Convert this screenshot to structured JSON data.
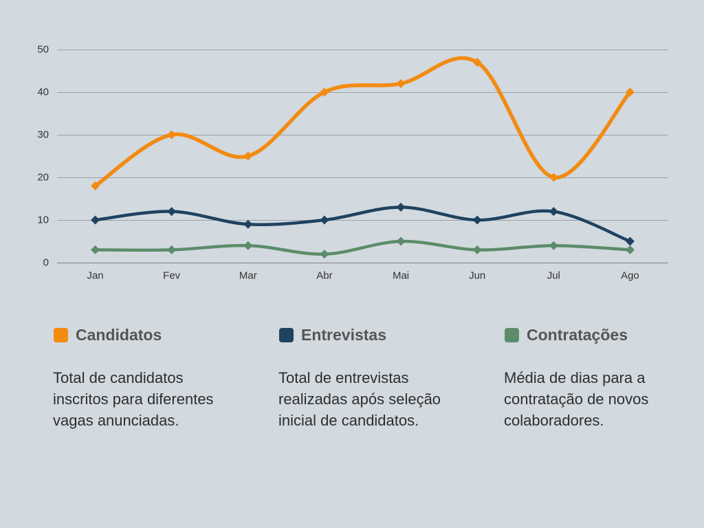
{
  "chart_data": {
    "type": "line",
    "smooth": true,
    "categories": [
      "Jan",
      "Fev",
      "Mar",
      "Abr",
      "Mai",
      "Jun",
      "Jul",
      "Ago"
    ],
    "ylim": [
      0,
      50
    ],
    "yticks": [
      0,
      10,
      20,
      30,
      40,
      50
    ],
    "grid": true,
    "legend_position": "bottom",
    "series": [
      {
        "name": "Candidatos",
        "color": "#F28B12",
        "values": [
          18,
          30,
          25,
          40,
          42,
          47,
          20,
          40
        ]
      },
      {
        "name": "Entrevistas",
        "color": "#1F4260",
        "values": [
          10,
          12,
          9,
          10,
          13,
          10,
          12,
          5
        ]
      },
      {
        "name": "Contratações",
        "color": "#5C8C69",
        "values": [
          3,
          3,
          4,
          2,
          5,
          3,
          4,
          3
        ]
      }
    ]
  },
  "legend_descriptions": [
    "Total de candidatos inscritos para diferentes vagas anunciadas.",
    "Total de entrevistas realizadas após seleção inicial de candidatos.",
    "Média de dias para a contratação de novos colaboradores."
  ]
}
